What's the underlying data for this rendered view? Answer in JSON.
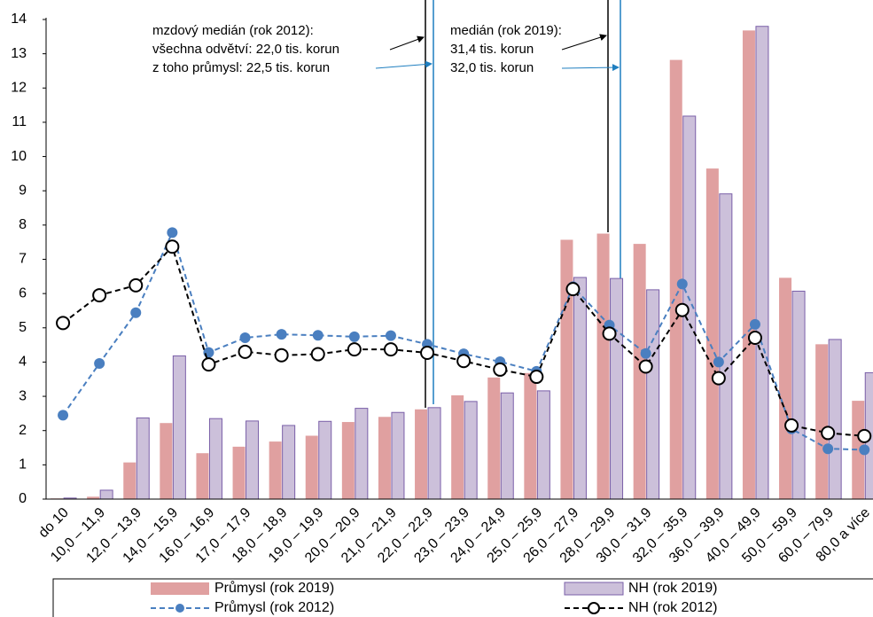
{
  "chart_data": {
    "type": "bar",
    "categories": [
      "do 10",
      "10,0 – 11,9",
      "12,0 – 13,9",
      "14,0 – 15,9",
      "16,0 – 16,9",
      "17,0 – 17,9",
      "18,0 – 18,9",
      "19,0 – 19,9",
      "20,0 – 20,9",
      "21,0 – 21,9",
      "22,0 – 22,9",
      "23,0 – 23,9",
      "24,0 – 24,9",
      "25,0 – 25,9",
      "26,0 – 27,9",
      "28,0 – 29,9",
      "30,0 – 31,9",
      "32,0 – 35,9",
      "36,0 – 39,9",
      "40,0 – 49,9",
      "50,0 – 59,9",
      "60,0 – 79,9",
      "80,0 a více"
    ],
    "series": [
      {
        "name": "Průmysl (rok 2019)",
        "type": "bar",
        "color": "#e0a0a0",
        "values": [
          0.02,
          0.07,
          1.07,
          2.22,
          1.34,
          1.53,
          1.68,
          1.85,
          2.25,
          2.4,
          2.62,
          3.03,
          3.55,
          3.68,
          7.57,
          7.75,
          7.45,
          12.82,
          9.65,
          13.68,
          6.46,
          4.52,
          2.87
        ]
      },
      {
        "name": "NH (rok 2019)",
        "type": "bar",
        "color": "#ccc0da",
        "values": [
          0.03,
          0.26,
          2.37,
          4.18,
          2.35,
          2.28,
          2.15,
          2.27,
          2.65,
          2.53,
          2.67,
          2.85,
          3.1,
          3.16,
          6.47,
          6.44,
          6.11,
          11.18,
          8.91,
          13.8,
          6.07,
          4.66,
          3.69
        ]
      },
      {
        "name": "Průmysl (rok 2012)",
        "type": "line",
        "color": "#4a7fc0",
        "values": [
          2.45,
          3.96,
          5.44,
          7.78,
          4.28,
          4.71,
          4.81,
          4.78,
          4.74,
          4.77,
          4.52,
          4.24,
          4.01,
          3.73,
          6.2,
          5.08,
          4.25,
          6.28,
          4.0,
          5.1,
          2.05,
          1.47,
          1.44
        ]
      },
      {
        "name": "NH (rok 2012)",
        "type": "line",
        "color": "#000000",
        "values": [
          5.14,
          5.95,
          6.24,
          7.37,
          3.93,
          4.3,
          4.2,
          4.23,
          4.37,
          4.37,
          4.27,
          4.03,
          3.78,
          3.57,
          6.13,
          4.83,
          3.87,
          5.52,
          3.53,
          4.71,
          2.15,
          1.93,
          1.84
        ]
      }
    ],
    "ylim": [
      0,
      14
    ],
    "yticks": [
      0,
      1,
      2,
      3,
      4,
      5,
      6,
      7,
      8,
      9,
      10,
      11,
      12,
      13,
      14
    ],
    "grid": false,
    "annotations": [
      [
        "mzdový medián (rok 2012):",
        "všechna odvětví: 22,0 tis. korun",
        "z toho průmysl: 22,5 tis. korun"
      ],
      [
        "medián (rok 2019):",
        "31,4 tis. korun",
        "32,0 tis. korun"
      ]
    ]
  }
}
